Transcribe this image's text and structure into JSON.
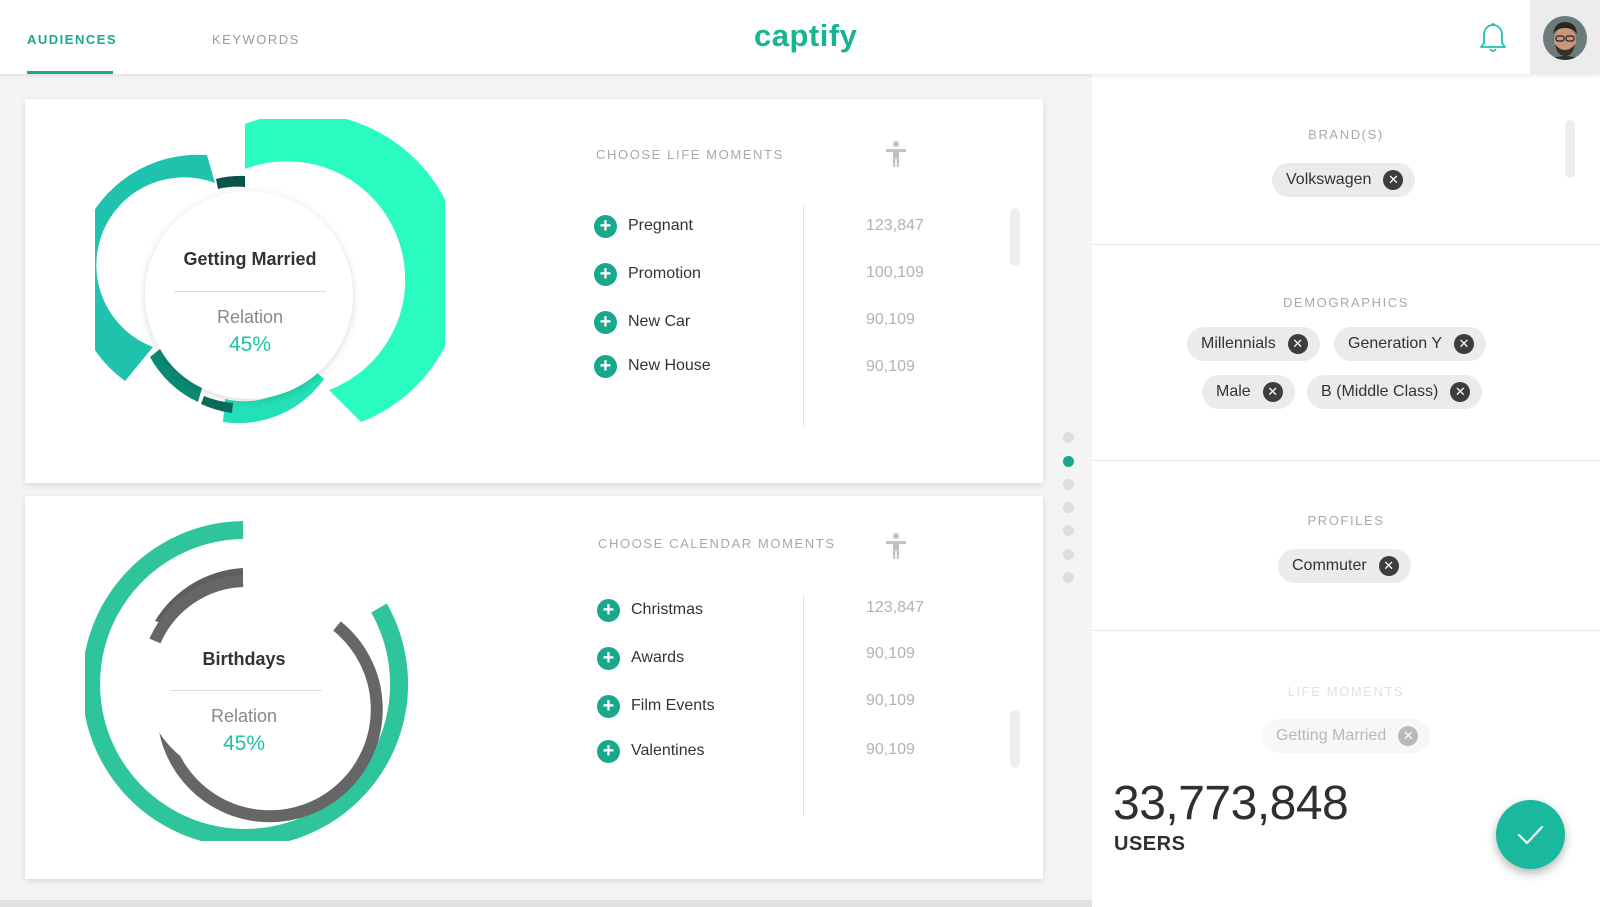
{
  "nav": {
    "tabs": [
      {
        "label": "AUDIENCES",
        "active": true
      },
      {
        "label": "KEYWORDS",
        "active": false
      }
    ],
    "logo": "captify",
    "bell_icon": "bell-icon",
    "avatar_icon": "user-avatar"
  },
  "colors": {
    "accent": "#1aa88c",
    "teal_light": "#29fbc1",
    "teal": "#1ec2ad",
    "grey_ring": "#666666"
  },
  "life_moments": {
    "title": "CHOOSE LIFE MOMENTS",
    "chart": {
      "label": "Getting Married",
      "sub_label": "Relation",
      "percent": "45%"
    },
    "items": [
      {
        "label": "Pregnant",
        "count": "123,847"
      },
      {
        "label": "Promotion",
        "count": "100,109"
      },
      {
        "label": "New Car",
        "count": "90,109"
      },
      {
        "label": "New House",
        "count": "90,109"
      }
    ]
  },
  "calendar_moments": {
    "title": "CHOOSE CALENDAR MOMENTS",
    "chart": {
      "label": "Birthdays",
      "sub_label": "Relation",
      "percent": "45%"
    },
    "items": [
      {
        "label": "Christmas",
        "count": "123,847"
      },
      {
        "label": "Awards",
        "count": "90,109"
      },
      {
        "label": "Film Events",
        "count": "90,109"
      },
      {
        "label": "Valentines",
        "count": "90,109"
      }
    ]
  },
  "pager": {
    "total": 7,
    "active_index": 1
  },
  "panel": {
    "brands": {
      "title": "BRAND(S)",
      "chips": [
        "Volkswagen"
      ]
    },
    "demographics": {
      "title": "DEMOGRAPHICS",
      "chips": [
        "Millennials",
        "Generation Y",
        "Male",
        "B (Middle Class)"
      ]
    },
    "profiles": {
      "title": "PROFILES",
      "chips": [
        "Commuter"
      ]
    },
    "life_moments": {
      "title": "LIFE MOMENTS",
      "chips": [
        "Getting Married"
      ]
    },
    "users_count": "33,773,848",
    "users_label": "USERS"
  }
}
